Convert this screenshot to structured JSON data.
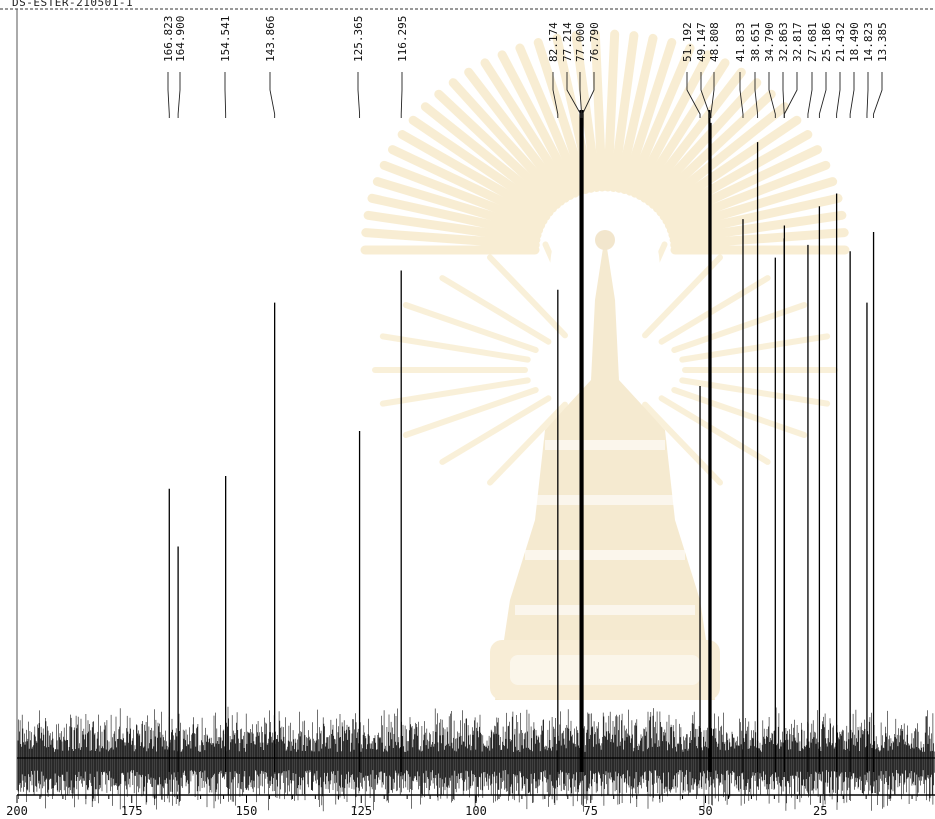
{
  "header": {
    "sample_label": "DS-ESTER-210501-1"
  },
  "chart_data": {
    "type": "line",
    "title": "",
    "xlabel": "",
    "ylabel": "",
    "x_axis": {
      "direction": "reversed",
      "min": 0,
      "max": 200,
      "ticks": [
        200,
        175,
        150,
        125,
        100,
        75,
        50,
        25
      ],
      "tick_labels": [
        "200",
        "175",
        "150",
        "125",
        "100",
        "75",
        "50",
        "25"
      ]
    },
    "peak_labels": [
      "166.823",
      "164.900",
      "154.541",
      "143.866",
      "125.365",
      "116.295",
      "82.174",
      "77.214",
      "77.000",
      "76.790",
      "51.192",
      "49.147",
      "48.808",
      "41.833",
      "38.651",
      "34.790",
      "32.863",
      "32.817",
      "27.681",
      "25.186",
      "21.432",
      "18.490",
      "14.823",
      "13.385"
    ],
    "peaks": [
      {
        "ppm": 166.823,
        "intensity": 0.41
      },
      {
        "ppm": 164.9,
        "intensity": 0.32
      },
      {
        "ppm": 154.541,
        "intensity": 0.43
      },
      {
        "ppm": 143.866,
        "intensity": 0.7
      },
      {
        "ppm": 125.365,
        "intensity": 0.5
      },
      {
        "ppm": 116.295,
        "intensity": 0.75
      },
      {
        "ppm": 82.174,
        "intensity": 0.72
      },
      {
        "ppm": 77.214,
        "intensity": 1.0
      },
      {
        "ppm": 77.0,
        "intensity": 1.0
      },
      {
        "ppm": 76.79,
        "intensity": 1.0
      },
      {
        "ppm": 51.192,
        "intensity": 0.57
      },
      {
        "ppm": 49.147,
        "intensity": 1.0
      },
      {
        "ppm": 48.808,
        "intensity": 0.98
      },
      {
        "ppm": 41.833,
        "intensity": 0.83
      },
      {
        "ppm": 38.651,
        "intensity": 0.95
      },
      {
        "ppm": 34.79,
        "intensity": 0.77
      },
      {
        "ppm": 32.863,
        "intensity": 0.8
      },
      {
        "ppm": 32.817,
        "intensity": 0.82
      },
      {
        "ppm": 27.681,
        "intensity": 0.79
      },
      {
        "ppm": 25.186,
        "intensity": 0.85
      },
      {
        "ppm": 21.432,
        "intensity": 0.87
      },
      {
        "ppm": 18.49,
        "intensity": 0.78
      },
      {
        "ppm": 14.823,
        "intensity": 0.7
      },
      {
        "ppm": 13.385,
        "intensity": 0.81
      }
    ],
    "grid": false,
    "legend": "none",
    "watermark": "university seal (decorative)"
  }
}
